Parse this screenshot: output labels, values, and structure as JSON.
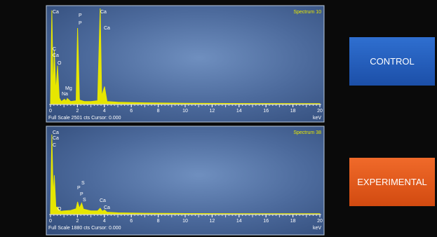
{
  "chart_data": [
    {
      "type": "line",
      "title": "Spectrum 10",
      "footer": "Full Scale 2501 cts Cursor: 0.000",
      "xlabel": "keV",
      "x": [
        0,
        0.1,
        0.2,
        0.28,
        0.4,
        0.52,
        0.65,
        0.8,
        1.04,
        1.15,
        1.25,
        1.5,
        1.9,
        2.01,
        2.15,
        2.5,
        3.0,
        3.5,
        3.69,
        3.8,
        4.01,
        4.2,
        5,
        7,
        10,
        15,
        20
      ],
      "series": [
        {
          "color": "#e6e600",
          "values": [
            0,
            2450,
            300,
            1400,
            300,
            1000,
            150,
            60,
            120,
            70,
            140,
            60,
            80,
            1985,
            100,
            60,
            60,
            80,
            2500,
            200,
            450,
            60,
            40,
            25,
            15,
            8,
            5
          ]
        }
      ],
      "annotations": [
        "Ca",
        "C",
        "Ca",
        "O",
        "Mg",
        "Na",
        "P",
        "P",
        "Ca",
        "Ca"
      ],
      "xlim": [
        0,
        20
      ],
      "xticks": [
        0,
        2,
        4,
        6,
        8,
        10,
        12,
        14,
        16,
        18,
        20
      ],
      "ylim": [
        0,
        2500
      ]
    },
    {
      "type": "line",
      "title": "Spectrum 38",
      "footer": "Full Scale 1880 cts Cursor: 0.000",
      "xlabel": "keV",
      "x": [
        0,
        0.1,
        0.2,
        0.28,
        0.4,
        0.52,
        0.65,
        0.8,
        1.0,
        1.5,
        1.9,
        2.01,
        2.15,
        2.31,
        2.45,
        3.0,
        3.5,
        3.69,
        3.85,
        4.01,
        4.2,
        5,
        7,
        10,
        15,
        20
      ],
      "series": [
        {
          "color": "#e6e600",
          "values": [
            0,
            1850,
            400,
            900,
            150,
            160,
            80,
            60,
            70,
            80,
            120,
            280,
            130,
            250,
            110,
            70,
            70,
            130,
            60,
            90,
            40,
            25,
            15,
            8,
            5,
            3
          ]
        }
      ],
      "annotations": [
        "Ca",
        "Ca",
        "C",
        "S",
        "P",
        "P",
        "S",
        "O",
        "Ca",
        "Ca"
      ],
      "xlim": [
        0,
        20
      ],
      "xticks": [
        0,
        2,
        4,
        6,
        8,
        10,
        12,
        14,
        16,
        18,
        20
      ],
      "ylim": [
        0,
        1880
      ]
    }
  ],
  "labels": {
    "control": "CONTROL",
    "experimental": "EXPERIMENTAL"
  }
}
